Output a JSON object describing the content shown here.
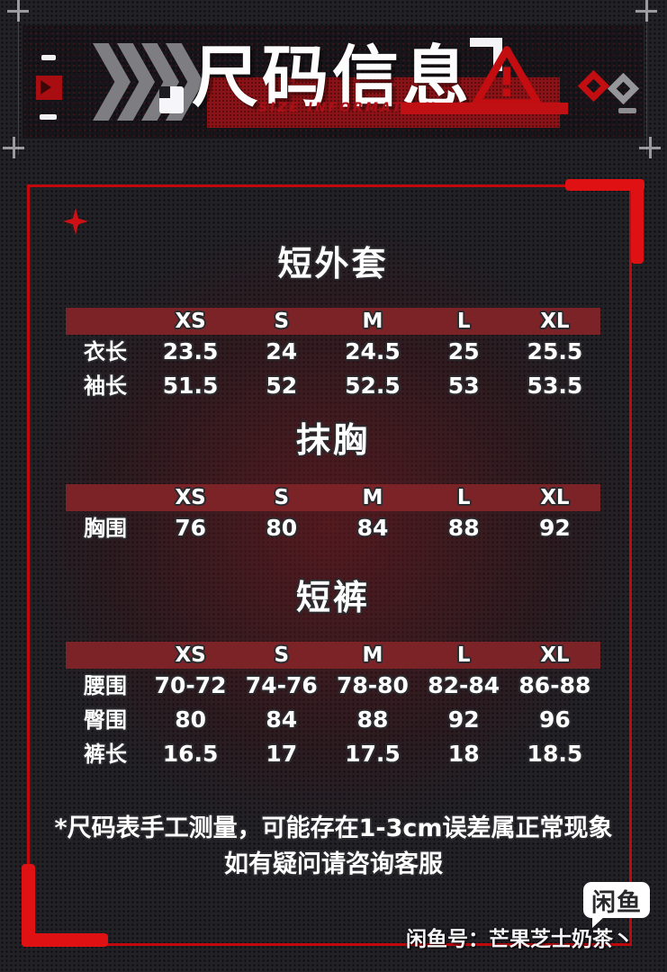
{
  "header": {
    "title": "尺码信息",
    "subtitle": "SIZE INFORMATION"
  },
  "sections": [
    {
      "title": "短外套",
      "columns": [
        "XS",
        "S",
        "M",
        "L",
        "XL"
      ],
      "rows": [
        {
          "label": "衣长",
          "values": [
            "23.5",
            "24",
            "24.5",
            "25",
            "25.5"
          ]
        },
        {
          "label": "袖长",
          "values": [
            "51.5",
            "52",
            "52.5",
            "53",
            "53.5"
          ]
        }
      ]
    },
    {
      "title": "抹胸",
      "columns": [
        "XS",
        "S",
        "M",
        "L",
        "XL"
      ],
      "rows": [
        {
          "label": "胸围",
          "values": [
            "76",
            "80",
            "84",
            "88",
            "92"
          ]
        }
      ]
    },
    {
      "title": "短裤",
      "columns": [
        "XS",
        "S",
        "M",
        "L",
        "XL"
      ],
      "rows": [
        {
          "label": "腰围",
          "values": [
            "70-72",
            "74-76",
            "78-80",
            "82-84",
            "86-88"
          ]
        },
        {
          "label": "臀围",
          "values": [
            "80",
            "84",
            "88",
            "92",
            "96"
          ]
        },
        {
          "label": "裤长",
          "values": [
            "16.5",
            "17",
            "17.5",
            "18",
            "18.5"
          ]
        }
      ]
    }
  ],
  "disclaimer": {
    "line1": "*尺码表手工测量，可能存在1-3cm误差属正常现象",
    "line2": "如有疑问请咨询客服"
  },
  "footer": {
    "logo_text": "闲鱼",
    "account": "闲鱼号：芒果芝士奶茶丶"
  },
  "colors": {
    "accent_red": "#df1113",
    "frame_red": "#bf090d",
    "table_header_maroon": "#7c2328",
    "banner_band_red": "#8c1216",
    "warning_red": "#c30d10",
    "text_white": "#ffffff"
  },
  "icons": {
    "play_square": "play-square-icon",
    "chevrons": "chevron-right-icon",
    "quote_mark": "quote-mark-icon",
    "corner_bracket": "corner-bracket-icon",
    "warning": "warning-triangle-icon",
    "diamond_red": "diamond-red-icon",
    "diamond_gray": "diamond-gray-icon",
    "sparkle": "sparkle-icon",
    "logo_badge": "xianyu-logo-badge"
  }
}
